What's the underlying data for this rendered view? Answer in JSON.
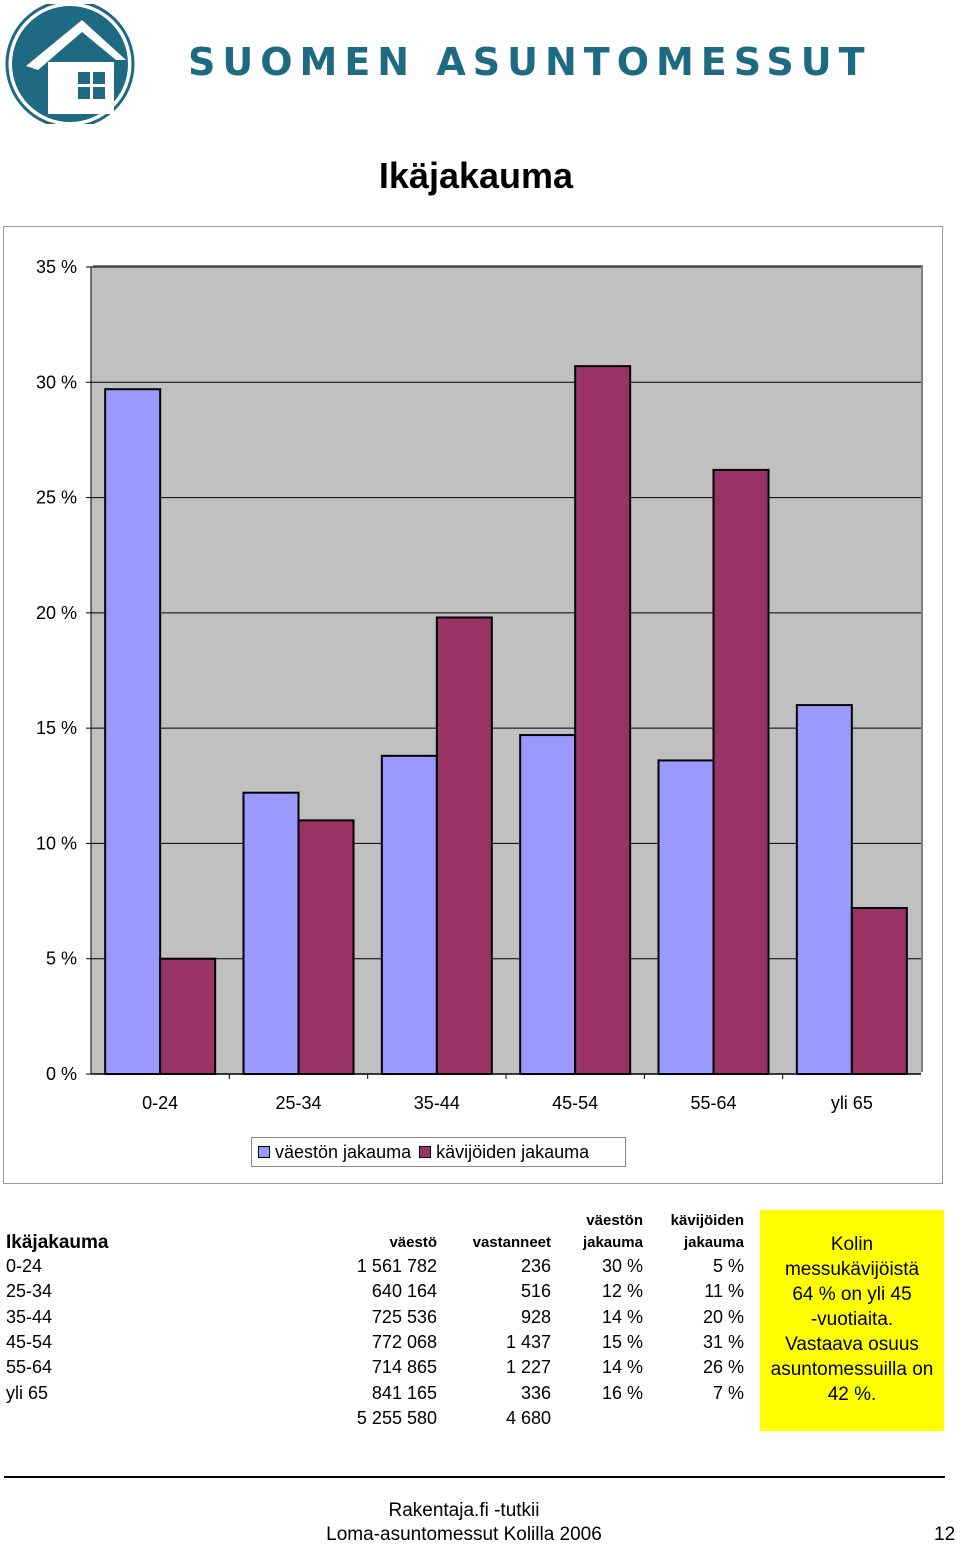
{
  "header": {
    "brand": "SUOMEN ASUNTOMESSUT"
  },
  "page_title": "Ikäjakauma",
  "colors": {
    "series1": "#9999ff",
    "series2": "#993366",
    "plot_bg": "#c0c0c0",
    "brand": "#1e6a82",
    "note_bg": "#ffff00"
  },
  "chart_data": {
    "type": "bar",
    "categories": [
      "0-24",
      "25-34",
      "35-44",
      "45-54",
      "55-64",
      "yli 65"
    ],
    "series": [
      {
        "name": "väestön jakauma",
        "values": [
          29.7,
          12.2,
          13.8,
          14.7,
          13.6,
          16.0
        ]
      },
      {
        "name": "kävijöiden jakauma",
        "values": [
          5.0,
          11.0,
          19.8,
          30.7,
          26.2,
          7.2
        ]
      }
    ],
    "ylim": [
      0,
      35
    ],
    "yticks": [
      "0 %",
      "5 %",
      "10 %",
      "15 %",
      "20 %",
      "25 %",
      "30 %",
      "35 %"
    ],
    "ytick_values": [
      0,
      5,
      10,
      15,
      20,
      25,
      30,
      35
    ],
    "grid": true,
    "legend": "bottom"
  },
  "legend": {
    "series1": "väestön jakauma",
    "series2": "kävijöiden jakauma"
  },
  "table": {
    "title": "Ikäjakauma",
    "headers": {
      "vaesto": "väestö",
      "vastanneet": "vastanneet",
      "vaeston_jakauma_1": "väestön",
      "vaeston_jakauma_2": "jakauma",
      "kavijoiden_jakauma_1": "kävijöiden",
      "kavijoiden_jakauma_2": "jakauma"
    },
    "rows": [
      {
        "group": "0-24",
        "vaesto": "1 561 782",
        "vastanneet": "236",
        "vj": "30 %",
        "kj": "5 %"
      },
      {
        "group": "25-34",
        "vaesto": "640 164",
        "vastanneet": "516",
        "vj": "12 %",
        "kj": "11 %"
      },
      {
        "group": "35-44",
        "vaesto": "725 536",
        "vastanneet": "928",
        "vj": "14 %",
        "kj": "20 %"
      },
      {
        "group": "45-54",
        "vaesto": "772 068",
        "vastanneet": "1 437",
        "vj": "15 %",
        "kj": "31 %"
      },
      {
        "group": "55-64",
        "vaesto": "714 865",
        "vastanneet": "1 227",
        "vj": "14 %",
        "kj": "26 %"
      },
      {
        "group": "yli 65",
        "vaesto": "841 165",
        "vastanneet": "336",
        "vj": "16 %",
        "kj": "7 %"
      }
    ],
    "totals": {
      "vaesto": "5 255 580",
      "vastanneet": "4 680"
    }
  },
  "note": {
    "lines": [
      "Kolin",
      "messukävijöistä",
      "64 % on yli 45",
      "-vuotiaita.",
      "Vastaava osuus",
      "asuntomessuilla on",
      "42 %."
    ]
  },
  "footer": {
    "line1": "Rakentaja.fi -tutkii",
    "line2": "Loma-asuntomessut Kolilla 2006",
    "page": "12"
  }
}
